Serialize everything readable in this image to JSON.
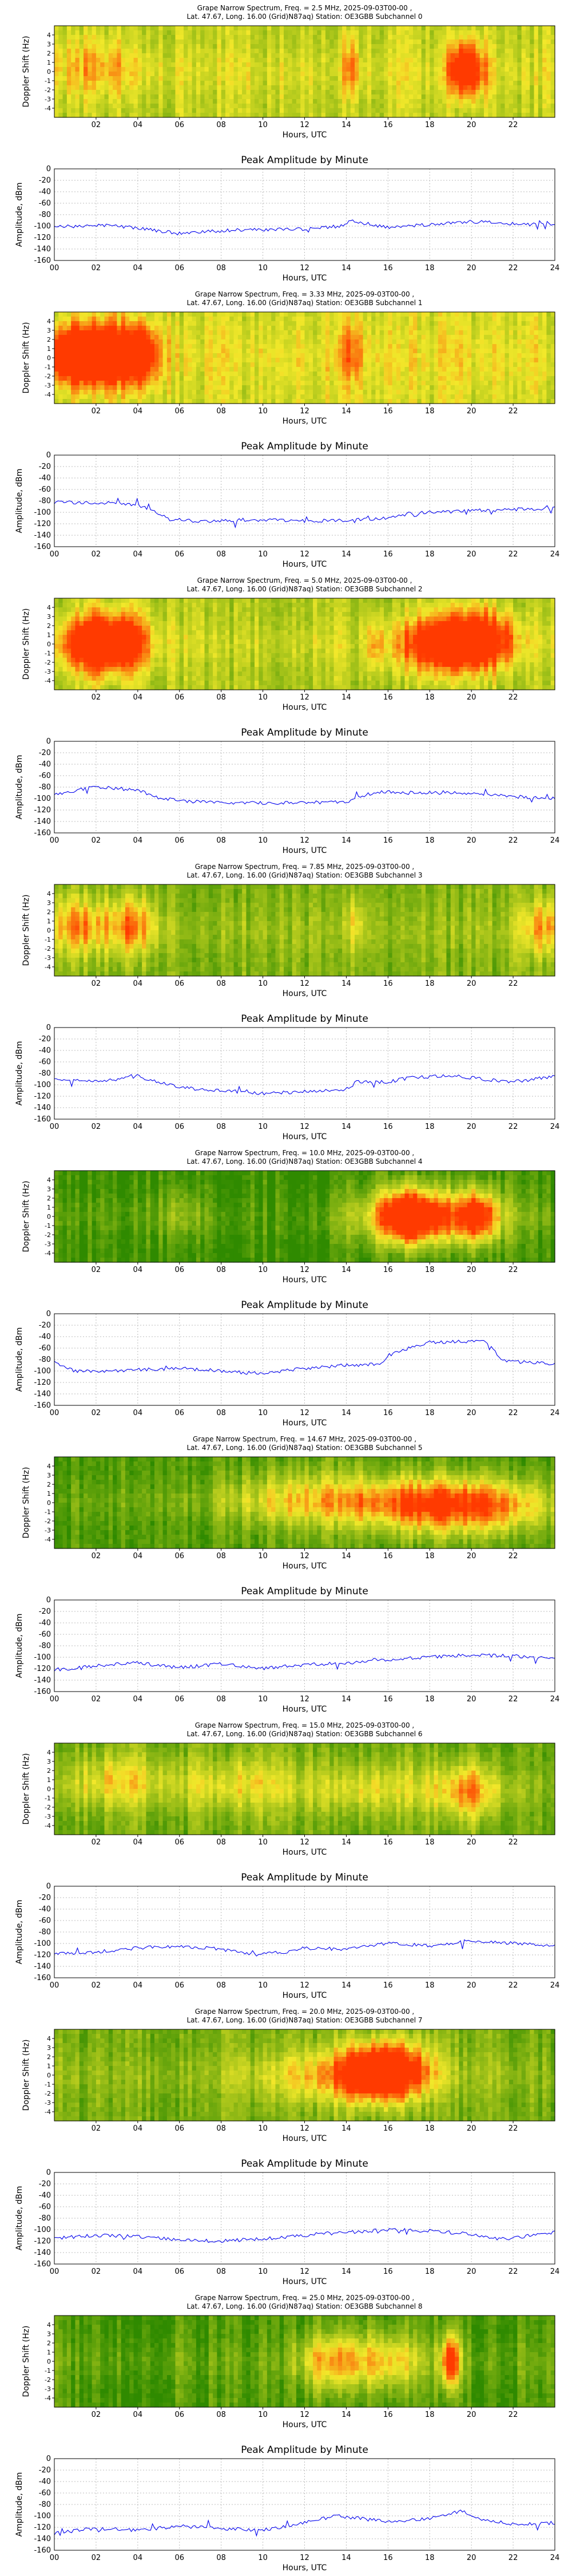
{
  "common": {
    "spec_ylabel": "Doppler Shift (Hz)",
    "spec_yticks": [
      "-4",
      "-3",
      "-2",
      "-1",
      "0",
      "1",
      "2",
      "3",
      "4"
    ],
    "spec_xticks": [
      "02",
      "04",
      "06",
      "08",
      "10",
      "12",
      "14",
      "16",
      "18",
      "20",
      "22"
    ],
    "xlabel": "Hours, UTC",
    "amp_title": "Peak Amplitude by Minute",
    "amp_ylabel": "Amplitude, dBm",
    "amp_yticks": [
      "0",
      "-20",
      "-40",
      "-60",
      "-80",
      "-100",
      "-120",
      "-140",
      "-160"
    ],
    "amp_xticks": [
      "00",
      "02",
      "04",
      "06",
      "08",
      "10",
      "12",
      "14",
      "16",
      "18",
      "20",
      "22",
      "24"
    ],
    "colors": {
      "line": "#0000ee",
      "spec_green": "#2f8a00",
      "spec_yellow": "#f2e82a",
      "spec_red": "#ff3a00"
    }
  },
  "chart_data": [
    {
      "type": "heatmap",
      "title_line1": "Grape Narrow Spectrum, Freq. = 2.5 MHz, 2025-09-03T00-00 ,",
      "title_line2": "Lat.  47.67, Long.   16.00 (Grid)N87aq) Station: OE3GBB Subchannel 0",
      "xlim": [
        0,
        24
      ],
      "ylim": [
        -5,
        5
      ],
      "base": 0.45,
      "width": 1.5,
      "blobs": [
        [
          1.5,
          0.5,
          1.4,
          0.15
        ],
        [
          3.0,
          0.5,
          1.2,
          0.12
        ],
        [
          14.2,
          0.5,
          0.3,
          0.35
        ],
        [
          19.6,
          0.3,
          0.5,
          0.85
        ],
        [
          20.4,
          0.2,
          0.4,
          0.25
        ]
      ],
      "amplitude": {
        "type": "line",
        "ylim": [
          -160,
          0
        ],
        "x": [
          0,
          2,
          4,
          6,
          8,
          10,
          12,
          13.8,
          14.2,
          16,
          18,
          20,
          22,
          24
        ],
        "values": [
          -102,
          -98,
          -103,
          -113,
          -108,
          -106,
          -105,
          -100,
          -90,
          -103,
          -97,
          -92,
          -96,
          -98
        ]
      }
    },
    {
      "type": "heatmap",
      "title_line1": "Grape Narrow Spectrum, Freq. = 3.33 MHz, 2025-09-03T00-00 ,",
      "title_line2": "Lat.  47.67, Long.   16.00 (Grid)N87aq) Station: OE3GBB Subchannel 1",
      "xlim": [
        0,
        24
      ],
      "ylim": [
        -5,
        5
      ],
      "base": 0.5,
      "width": 2.0,
      "blobs": [
        [
          1.0,
          0.3,
          1.2,
          0.85
        ],
        [
          3.0,
          0.3,
          1.2,
          0.8
        ],
        [
          4.2,
          0.3,
          0.4,
          0.5
        ],
        [
          14.2,
          0.5,
          0.4,
          0.3
        ]
      ],
      "amplitude": {
        "type": "line",
        "ylim": [
          -160,
          0
        ],
        "x": [
          0,
          2,
          4,
          5.5,
          7,
          9,
          12,
          14,
          16,
          17,
          20,
          22,
          24
        ],
        "values": [
          -82,
          -83,
          -86,
          -112,
          -116,
          -113,
          -115,
          -114,
          -110,
          -102,
          -97,
          -95,
          -93
        ]
      }
    },
    {
      "type": "heatmap",
      "title_line1": "Grape Narrow Spectrum, Freq. = 5.0 MHz, 2025-09-03T00-00 ,",
      "title_line2": "Lat.  47.67, Long.   16.00 (Grid)N87aq) Station: OE3GBB Subchannel 2",
      "xlim": [
        0,
        24
      ],
      "ylim": [
        -5,
        5
      ],
      "base": 0.4,
      "width": 1.6,
      "blobs": [
        [
          1.8,
          0.0,
          1.2,
          0.8
        ],
        [
          3.3,
          0.2,
          1.0,
          0.55
        ],
        [
          18.5,
          0.0,
          1.5,
          0.8
        ],
        [
          20.5,
          0.5,
          1.2,
          0.7
        ],
        [
          15.4,
          0.0,
          0.3,
          0.25
        ]
      ],
      "amplitude": {
        "type": "line",
        "ylim": [
          -160,
          0
        ],
        "x": [
          0,
          2,
          4,
          5,
          7,
          10,
          14,
          14.5,
          15.5,
          17,
          20,
          22,
          24
        ],
        "values": [
          -92,
          -80,
          -85,
          -100,
          -106,
          -108,
          -106,
          -98,
          -88,
          -90,
          -90,
          -96,
          -100
        ]
      }
    },
    {
      "type": "heatmap",
      "title_line1": "Grape Narrow Spectrum, Freq. = 7.85 MHz, 2025-09-03T00-00 ,",
      "title_line2": "Lat.  47.67, Long.   16.00 (Grid)N87aq) Station: OE3GBB Subchannel 3",
      "xlim": [
        0,
        24
      ],
      "ylim": [
        -5,
        5
      ],
      "base": 0.25,
      "width": 1.8,
      "blobs": [
        [
          1.2,
          0.5,
          1.0,
          0.5
        ],
        [
          3.8,
          0.5,
          0.8,
          0.55
        ],
        [
          23.5,
          0.3,
          0.8,
          0.45
        ],
        [
          14.5,
          0.5,
          0.4,
          0.25
        ]
      ],
      "amplitude": {
        "type": "line",
        "ylim": [
          -160,
          0
        ],
        "x": [
          0,
          2,
          4,
          6,
          8,
          10,
          12,
          14,
          14.5,
          16,
          17,
          19,
          20,
          22,
          24
        ],
        "values": [
          -90,
          -95,
          -85,
          -105,
          -110,
          -115,
          -112,
          -108,
          -95,
          -95,
          -88,
          -84,
          -88,
          -95,
          -85
        ]
      }
    },
    {
      "type": "heatmap",
      "title_line1": "Grape Narrow Spectrum, Freq. = 10.0 MHz, 2025-09-03T00-00 ,",
      "title_line2": "Lat.  47.67, Long.   16.00 (Grid)N87aq) Station: OE3GBB Subchannel 4",
      "xlim": [
        0,
        24
      ],
      "ylim": [
        -5,
        5
      ],
      "base": 0.05,
      "width": 1.5,
      "blobs": [
        [
          18.0,
          0.0,
          2.2,
          0.95
        ],
        [
          16.8,
          0.0,
          0.8,
          0.6
        ],
        [
          20.4,
          0.0,
          0.6,
          0.6
        ],
        [
          6.0,
          0.3,
          0.8,
          0.2
        ]
      ],
      "amplitude": {
        "type": "line",
        "ylim": [
          -160,
          0
        ],
        "x": [
          0,
          1,
          2,
          4,
          6,
          8,
          10,
          12,
          14,
          15.5,
          16.5,
          18,
          20,
          20.8,
          21.5,
          24
        ],
        "values": [
          -85,
          -100,
          -100,
          -98,
          -95,
          -100,
          -105,
          -95,
          -90,
          -88,
          -65,
          -50,
          -48,
          -50,
          -82,
          -88
        ]
      }
    },
    {
      "type": "heatmap",
      "title_line1": "Grape Narrow Spectrum, Freq. = 14.67 MHz, 2025-09-03T00-00 ,",
      "title_line2": "Lat.  47.67, Long.   16.00 (Grid)N87aq) Station: OE3GBB Subchannel 5",
      "xlim": [
        0,
        24
      ],
      "ylim": [
        -5,
        5
      ],
      "base": 0.12,
      "width": 1.2,
      "blobs": [
        [
          12.5,
          0.3,
          3.0,
          0.5
        ],
        [
          17.5,
          -0.3,
          2.0,
          0.65
        ],
        [
          21.0,
          -0.4,
          2.0,
          0.65
        ]
      ],
      "amplitude": {
        "type": "line",
        "ylim": [
          -160,
          0
        ],
        "x": [
          0,
          2,
          4,
          6,
          8,
          10,
          12,
          14,
          16,
          18,
          20,
          22,
          24
        ],
        "values": [
          -122,
          -115,
          -110,
          -118,
          -112,
          -120,
          -113,
          -110,
          -104,
          -100,
          -96,
          -98,
          -102
        ]
      }
    },
    {
      "type": "heatmap",
      "title_line1": "Grape Narrow Spectrum, Freq. = 15.0 MHz, 2025-09-03T00-00 ,",
      "title_line2": "Lat.  47.67, Long.   16.00 (Grid)N87aq) Station: OE3GBB Subchannel 6",
      "xlim": [
        0,
        24
      ],
      "ylim": [
        -5,
        5
      ],
      "base": 0.2,
      "width": 1.5,
      "blobs": [
        [
          19.8,
          -0.3,
          1.2,
          0.55
        ],
        [
          3.0,
          1.0,
          2.0,
          0.35
        ],
        [
          9.0,
          0.5,
          2.0,
          0.3
        ],
        [
          15.0,
          0.0,
          2.0,
          0.3
        ]
      ],
      "amplitude": {
        "type": "line",
        "ylim": [
          -160,
          0
        ],
        "x": [
          0,
          2,
          4,
          6,
          8,
          9.5,
          11,
          12,
          14,
          16,
          18,
          20,
          22,
          24
        ],
        "values": [
          -118,
          -115,
          -108,
          -105,
          -110,
          -120,
          -115,
          -108,
          -110,
          -100,
          -104,
          -95,
          -100,
          -103
        ]
      }
    },
    {
      "type": "heatmap",
      "title_line1": "Grape Narrow Spectrum, Freq. = 20.0 MHz, 2025-09-03T00-00 ,",
      "title_line2": "Lat.  47.67, Long.   16.00 (Grid)N87aq) Station: OE3GBB Subchannel 7",
      "xlim": [
        0,
        24
      ],
      "ylim": [
        -5,
        5
      ],
      "base": 0.22,
      "width": 1.4,
      "blobs": [
        [
          13.5,
          0.0,
          2.5,
          0.45
        ],
        [
          16.5,
          0.5,
          1.2,
          0.8
        ],
        [
          15.0,
          0.3,
          1.0,
          0.55
        ]
      ],
      "amplitude": {
        "type": "line",
        "ylim": [
          -160,
          0
        ],
        "x": [
          0,
          2,
          4,
          6,
          8,
          10,
          12,
          14,
          16,
          18,
          20,
          21.5,
          22.5,
          24
        ],
        "values": [
          -115,
          -110,
          -112,
          -118,
          -120,
          -116,
          -110,
          -105,
          -100,
          -102,
          -108,
          -118,
          -112,
          -105
        ]
      }
    },
    {
      "type": "heatmap",
      "title_line1": "Grape Narrow Spectrum, Freq. = 25.0 MHz, 2025-09-03T00-00 ,",
      "title_line2": "Lat.  47.67, Long.   16.00 (Grid)N87aq) Station: OE3GBB Subchannel 8",
      "xlim": [
        0,
        24
      ],
      "ylim": [
        -5,
        5
      ],
      "base": 0.1,
      "width": 1.5,
      "blobs": [
        [
          19.0,
          0.0,
          0.35,
          0.95
        ],
        [
          14.5,
          0.0,
          1.5,
          0.4
        ],
        [
          13.0,
          0.0,
          1.0,
          0.35
        ],
        [
          16.5,
          0.0,
          1.0,
          0.3
        ]
      ],
      "amplitude": {
        "type": "line",
        "ylim": [
          -160,
          0
        ],
        "x": [
          0,
          2,
          4,
          6,
          8,
          10,
          12,
          13.5,
          16,
          18,
          19.5,
          20.5,
          22,
          24
        ],
        "values": [
          -130,
          -122,
          -125,
          -118,
          -122,
          -125,
          -112,
          -100,
          -110,
          -105,
          -92,
          -105,
          -115,
          -112
        ]
      }
    }
  ]
}
